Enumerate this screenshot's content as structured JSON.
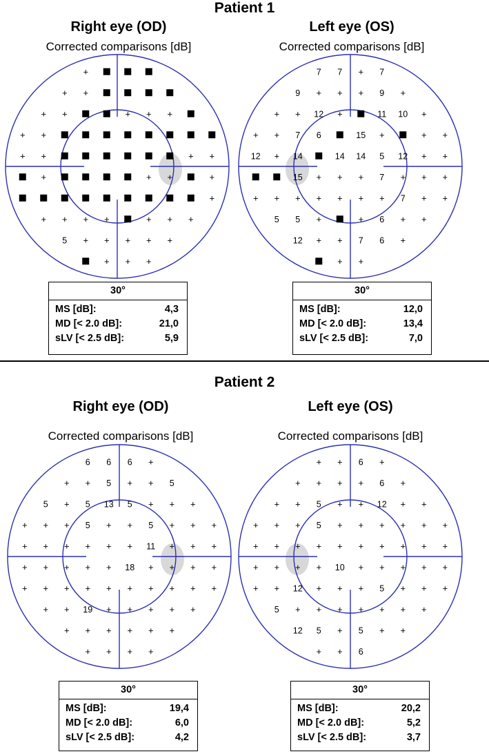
{
  "patients": [
    {
      "title": "Patient  1",
      "eyes": [
        {
          "eye_label": "Right eye (OD)",
          "subtitle": "Corrected comparisons [dB]",
          "blind_spot_side": "right",
          "rows": [
            [
              null,
              null,
              null,
              "+",
              "■",
              "■",
              "■",
              null,
              null,
              null
            ],
            [
              null,
              null,
              "+",
              "+",
              "■",
              "■",
              "■",
              "■",
              null,
              null
            ],
            [
              null,
              "+",
              "+",
              "■",
              "■",
              "+",
              "+",
              "+",
              "■",
              null
            ],
            [
              "+",
              "+",
              "■",
              "■",
              "■",
              "■",
              "■",
              "■",
              "■",
              "■"
            ],
            [
              "+",
              "+",
              "■",
              "■",
              "■",
              "■",
              "■",
              "■",
              "+",
              "+"
            ],
            [
              "■",
              "+",
              "■",
              "■",
              "■",
              "■",
              "+",
              "+",
              "■",
              "+"
            ],
            [
              "■",
              "■",
              "■",
              "■",
              "■",
              "■",
              "■",
              "■",
              "■",
              "+"
            ],
            [
              null,
              "+",
              "+",
              "+",
              "+",
              "■",
              "+",
              "+",
              "+",
              null
            ],
            [
              null,
              null,
              "5",
              "+",
              "+",
              "+",
              "+",
              "+",
              null,
              null
            ],
            [
              null,
              null,
              null,
              "■",
              "+",
              "+",
              "+",
              null,
              null,
              null
            ]
          ],
          "stats": {
            "header": "30°",
            "rows": [
              {
                "label": "MS [dB]:",
                "value": "4,3"
              },
              {
                "label": "MD [< 2.0 dB]:",
                "value": "21,0"
              },
              {
                "label": "sLV [< 2.5 dB]:",
                "value": "5,9"
              }
            ]
          }
        },
        {
          "eye_label": "Left eye (OS)",
          "subtitle": "Corrected comparisons [dB]",
          "blind_spot_side": "left",
          "rows": [
            [
              null,
              null,
              null,
              "7",
              "7",
              "+",
              "7",
              null,
              null,
              null
            ],
            [
              null,
              null,
              "9",
              "+",
              "+",
              "+",
              "9",
              "+",
              null,
              null
            ],
            [
              null,
              "+",
              "+",
              "12",
              "+",
              "■",
              "11",
              "10",
              "+",
              null
            ],
            [
              "+",
              "+",
              "7",
              "6",
              "■",
              "15",
              "+",
              "■",
              "+",
              "+"
            ],
            [
              "12",
              "+",
              "14",
              "■",
              "14",
              "14",
              "5",
              "12",
              "+",
              "+"
            ],
            [
              "■",
              "■",
              "15",
              "+",
              "+",
              "+",
              "7",
              "+",
              "+",
              "+"
            ],
            [
              "+",
              "+",
              "+",
              "+",
              "+",
              "+",
              "+",
              "7",
              "+",
              "+"
            ],
            [
              null,
              "5",
              "5",
              "+",
              "■",
              "+",
              "6",
              "+",
              "+",
              null
            ],
            [
              null,
              null,
              "12",
              "+",
              "+",
              "7",
              "6",
              "+",
              null,
              null
            ],
            [
              null,
              null,
              null,
              "■",
              "+",
              "+",
              null,
              null,
              null,
              null
            ]
          ],
          "stats": {
            "header": "30°",
            "rows": [
              {
                "label": "MS [dB]:",
                "value": "12,0"
              },
              {
                "label": "MD [< 2.0 dB]:",
                "value": "13,4"
              },
              {
                "label": "sLV [< 2.5 dB]:",
                "value": "7,0"
              }
            ]
          }
        }
      ]
    },
    {
      "title": "Patient  2",
      "eyes": [
        {
          "eye_label": "Right eye (OD)",
          "subtitle": "Corrected comparisons [dB]",
          "blind_spot_side": "right",
          "rows": [
            [
              null,
              null,
              null,
              "6",
              "6",
              "6",
              "+",
              null,
              null,
              null
            ],
            [
              null,
              null,
              "+",
              "+",
              "5",
              "+",
              "+",
              "5",
              null,
              null
            ],
            [
              null,
              "5",
              "+",
              "5",
              "13",
              "5",
              "+",
              "+",
              "+",
              null
            ],
            [
              "+",
              "+",
              "+",
              "5",
              "+",
              "+",
              "5",
              "+",
              "+",
              "+"
            ],
            [
              "+",
              "+",
              "+",
              "+",
              "+",
              "+",
              "11",
              "+",
              "+",
              "+"
            ],
            [
              "+",
              "+",
              "+",
              "+",
              "+",
              "18",
              "+",
              "+",
              "+",
              "+"
            ],
            [
              "+",
              "+",
              "+",
              "+",
              "+",
              "+",
              "+",
              "+",
              "+",
              "+"
            ],
            [
              null,
              "+",
              "+",
              "19",
              "+",
              "+",
              "+",
              "+",
              "+",
              null
            ],
            [
              null,
              null,
              "+",
              "+",
              "+",
              "+",
              "+",
              "+",
              null,
              null
            ],
            [
              null,
              null,
              null,
              "+",
              "+",
              "+",
              "+",
              null,
              null,
              null
            ]
          ],
          "stats": {
            "header": "30°",
            "rows": [
              {
                "label": "MS [dB]:",
                "value": "19,4"
              },
              {
                "label": "MD [< 2.0 dB]:",
                "value": "6,0"
              },
              {
                "label": "sLV [< 2.5 dB]:",
                "value": "4,2"
              }
            ]
          }
        },
        {
          "eye_label": "Left eye (OS)",
          "subtitle": "Corrected comparisons [dB]",
          "blind_spot_side": "left",
          "rows": [
            [
              null,
              null,
              null,
              "+",
              "+",
              "6",
              "+",
              null,
              null,
              null
            ],
            [
              null,
              null,
              "+",
              "+",
              "+",
              "+",
              "6",
              "+",
              null,
              null
            ],
            [
              null,
              "+",
              "+",
              "5",
              "+",
              "+",
              "12",
              "+",
              "+",
              null
            ],
            [
              "+",
              "+",
              "+",
              "5",
              "+",
              "+",
              "+",
              "+",
              "+",
              "+"
            ],
            [
              "+",
              "+",
              "+",
              "+",
              "+",
              "+",
              "+",
              "+",
              "+",
              "+"
            ],
            [
              "+",
              "+",
              "+",
              "+",
              "10",
              "+",
              "+",
              "+",
              "+",
              "+"
            ],
            [
              "+",
              "+",
              "12",
              "+",
              "+",
              "+",
              "5",
              "+",
              "+",
              "+"
            ],
            [
              null,
              "5",
              "+",
              "+",
              "+",
              "+",
              "+",
              "+",
              "+",
              null
            ],
            [
              null,
              null,
              "12",
              "5",
              "+",
              "5",
              "+",
              "+",
              null,
              null
            ],
            [
              null,
              null,
              null,
              "+",
              "+",
              "6",
              null,
              null,
              null,
              null
            ]
          ],
          "stats": {
            "header": "30°",
            "rows": [
              {
                "label": "MS [dB]:",
                "value": "20,2"
              },
              {
                "label": "MD [< 2.0 dB]:",
                "value": "5,2"
              },
              {
                "label": "sLV [< 2.5 dB]:",
                "value": "3,7"
              }
            ]
          }
        }
      ]
    }
  ],
  "colors": {
    "circle": "#2b2fb0",
    "blind_spot": "#d8d8d8",
    "defect": "#000000",
    "text": "#000000"
  }
}
